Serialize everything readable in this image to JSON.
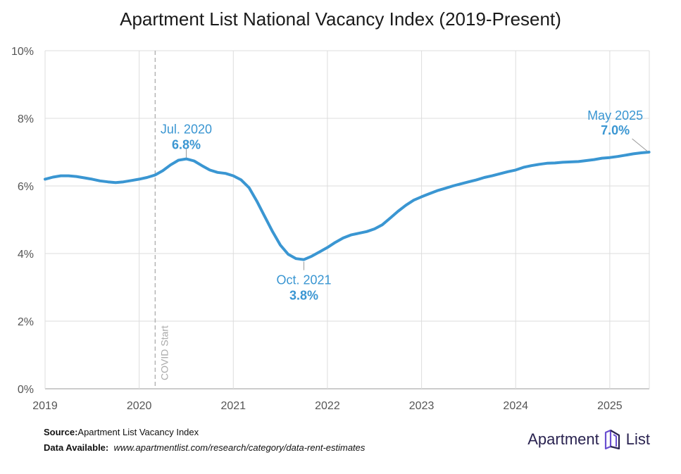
{
  "title": "Apartment List National Vacancy Index (2019-Present)",
  "footer": {
    "source_label": "Source:",
    "source_text": "Apartment List Vacancy Index",
    "data_label": "Data Available:",
    "data_url": "www.apartmentlist.com/research/category/data-rent-estimates"
  },
  "logo": {
    "word1": "Apartment",
    "word2": "List"
  },
  "chart_data": {
    "type": "line",
    "title": "Apartment List National Vacancy Index (2019-Present)",
    "xlim": [
      2019.0,
      2025.42
    ],
    "ylim": [
      0,
      10
    ],
    "x_ticks": [
      2019,
      2020,
      2021,
      2022,
      2023,
      2024,
      2025
    ],
    "x_tick_labels": [
      "2019",
      "2020",
      "2021",
      "2022",
      "2023",
      "2024",
      "2025"
    ],
    "y_ticks": [
      0,
      2,
      4,
      6,
      8,
      10
    ],
    "y_tick_labels": [
      "0%",
      "2%",
      "4%",
      "6%",
      "8%",
      "10%"
    ],
    "grid": true,
    "line_color": "#3a96d2",
    "series": [
      {
        "values": [
          [
            2019.0,
            6.2
          ],
          [
            2019.083,
            6.26
          ],
          [
            2019.167,
            6.3
          ],
          [
            2019.25,
            6.3
          ],
          [
            2019.333,
            6.28
          ],
          [
            2019.417,
            6.24
          ],
          [
            2019.5,
            6.2
          ],
          [
            2019.583,
            6.15
          ],
          [
            2019.667,
            6.12
          ],
          [
            2019.75,
            6.1
          ],
          [
            2019.833,
            6.12
          ],
          [
            2019.917,
            6.16
          ],
          [
            2020.0,
            6.2
          ],
          [
            2020.083,
            6.25
          ],
          [
            2020.167,
            6.32
          ],
          [
            2020.25,
            6.45
          ],
          [
            2020.333,
            6.62
          ],
          [
            2020.417,
            6.76
          ],
          [
            2020.5,
            6.8
          ],
          [
            2020.583,
            6.74
          ],
          [
            2020.667,
            6.6
          ],
          [
            2020.75,
            6.47
          ],
          [
            2020.833,
            6.4
          ],
          [
            2020.917,
            6.37
          ],
          [
            2021.0,
            6.3
          ],
          [
            2021.083,
            6.18
          ],
          [
            2021.167,
            5.95
          ],
          [
            2021.25,
            5.55
          ],
          [
            2021.333,
            5.1
          ],
          [
            2021.417,
            4.65
          ],
          [
            2021.5,
            4.25
          ],
          [
            2021.583,
            3.98
          ],
          [
            2021.667,
            3.85
          ],
          [
            2021.75,
            3.82
          ],
          [
            2021.833,
            3.92
          ],
          [
            2021.917,
            4.05
          ],
          [
            2022.0,
            4.18
          ],
          [
            2022.083,
            4.33
          ],
          [
            2022.167,
            4.46
          ],
          [
            2022.25,
            4.55
          ],
          [
            2022.333,
            4.6
          ],
          [
            2022.417,
            4.65
          ],
          [
            2022.5,
            4.73
          ],
          [
            2022.583,
            4.85
          ],
          [
            2022.667,
            5.05
          ],
          [
            2022.75,
            5.25
          ],
          [
            2022.833,
            5.43
          ],
          [
            2022.917,
            5.58
          ],
          [
            2023.0,
            5.68
          ],
          [
            2023.083,
            5.77
          ],
          [
            2023.167,
            5.86
          ],
          [
            2023.25,
            5.93
          ],
          [
            2023.333,
            6.0
          ],
          [
            2023.417,
            6.06
          ],
          [
            2023.5,
            6.12
          ],
          [
            2023.583,
            6.18
          ],
          [
            2023.667,
            6.25
          ],
          [
            2023.75,
            6.3
          ],
          [
            2023.833,
            6.36
          ],
          [
            2023.917,
            6.42
          ],
          [
            2024.0,
            6.47
          ],
          [
            2024.083,
            6.55
          ],
          [
            2024.167,
            6.6
          ],
          [
            2024.25,
            6.64
          ],
          [
            2024.333,
            6.67
          ],
          [
            2024.417,
            6.68
          ],
          [
            2024.5,
            6.7
          ],
          [
            2024.583,
            6.71
          ],
          [
            2024.667,
            6.72
          ],
          [
            2024.75,
            6.75
          ],
          [
            2024.833,
            6.78
          ],
          [
            2024.917,
            6.82
          ],
          [
            2025.0,
            6.84
          ],
          [
            2025.083,
            6.87
          ],
          [
            2025.167,
            6.91
          ],
          [
            2025.25,
            6.95
          ],
          [
            2025.333,
            6.98
          ],
          [
            2025.417,
            7.0
          ]
        ]
      }
    ],
    "reference_line": {
      "x": 2020.17,
      "label": "COVID Start"
    },
    "annotations": [
      {
        "x": 2020.5,
        "y": 6.8,
        "date": "Jul. 2020",
        "value": "6.8%",
        "position": "above"
      },
      {
        "x": 2021.75,
        "y": 3.8,
        "date": "Oct. 2021",
        "value": "3.8%",
        "position": "below"
      },
      {
        "x": 2025.417,
        "y": 7.0,
        "date": "May 2025",
        "value": "7.0%",
        "position": "above-left"
      }
    ]
  }
}
